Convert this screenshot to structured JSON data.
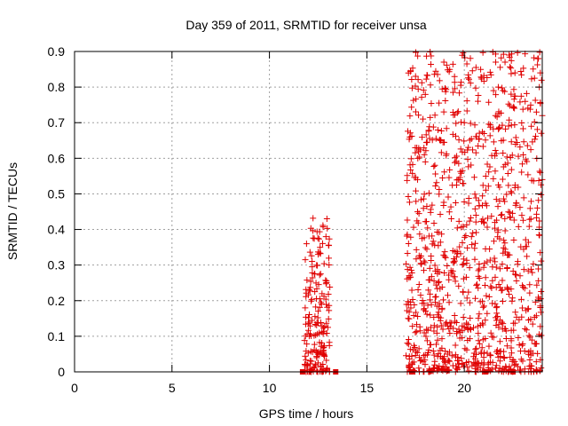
{
  "chart_data": {
    "type": "scatter",
    "title": "Day 359 of 2011, SRMTID for receiver unsa",
    "xlabel": "GPS time / hours",
    "ylabel": "SRMTID / TECUs",
    "xlim": [
      0,
      24
    ],
    "ylim": [
      0,
      0.9
    ],
    "xticks": [
      0,
      5,
      10,
      15,
      20
    ],
    "xtick_labels": [
      "0",
      "5",
      "10",
      "15",
      "20"
    ],
    "yticks": [
      0,
      0.1,
      0.2,
      0.3,
      0.4,
      0.5,
      0.6,
      0.7,
      0.8,
      0.9
    ],
    "ytick_labels": [
      "0",
      "0.1",
      "0.2",
      "0.3",
      "0.4",
      "0.5",
      "0.6",
      "0.7",
      "0.8",
      "0.9"
    ],
    "grid": true,
    "series": [
      {
        "name": "SRMTID",
        "marker": "plus",
        "color": "#e00000",
        "clusters": [
          {
            "x_range": [
              11.8,
              13.1
            ],
            "count": 190,
            "bias": 2.0,
            "y_max": 0.44
          },
          {
            "x_range": [
              17.0,
              24.0
            ],
            "count": 1050,
            "bias": 1.6,
            "y_max": 0.9
          }
        ],
        "points": [
          [
            12.95,
            0.43
          ],
          [
            12.9,
            0.38
          ],
          [
            12.6,
            0.35
          ],
          [
            12.5,
            0.33
          ],
          [
            18.7,
            0.755
          ],
          [
            18.8,
            0.65
          ],
          [
            20.6,
            0.855
          ],
          [
            20.0,
            0.7
          ],
          [
            20.7,
            0.76
          ],
          [
            21.5,
            0.79
          ],
          [
            21.6,
            0.72
          ],
          [
            22.3,
            0.89
          ],
          [
            22.4,
            0.78
          ],
          [
            22.6,
            0.84
          ],
          [
            23.8,
            0.88
          ],
          [
            23.9,
            0.84
          ],
          [
            23.85,
            0.8
          ],
          [
            23.7,
            0.73
          ],
          [
            24.0,
            0.72
          ],
          [
            23.95,
            0.67
          ],
          [
            23.9,
            0.56
          ],
          [
            24.0,
            0.54
          ],
          [
            17.6,
            0.54
          ],
          [
            18.0,
            0.59
          ]
        ]
      }
    ],
    "baseline_markers": {
      "y": 0,
      "marker": "square",
      "color": "#e00000",
      "x": [
        11.7,
        13.4,
        17.3,
        21.1,
        22.5
      ]
    }
  }
}
